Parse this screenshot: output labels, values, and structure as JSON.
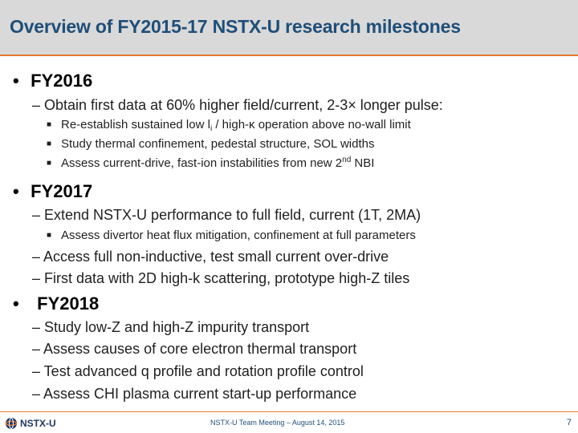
{
  "title": "Overview of FY2015-17 NSTX-U research milestones",
  "fy2016": {
    "heading": "FY2016",
    "sub": "– Obtain first data at 60% higher field/current, 2-3× longer pulse:",
    "items": [
      {
        "pre": "Re-establish sustained low l",
        "subscript": "i",
        "post": " / high-κ operation above no-wall limit"
      },
      {
        "text": "Study thermal confinement, pedestal structure, SOL widths"
      },
      {
        "pre": "Assess current-drive, fast-ion instabilities from new 2",
        "sup": "nd",
        "post": " NBI"
      }
    ]
  },
  "fy2017": {
    "heading": "FY2017",
    "sub1": "– Extend NSTX-U performance to full field, current (1T, 2MA)",
    "item1": "Assess divertor heat flux mitigation, confinement at full parameters",
    "sub2": "– Access full non-inductive, test small current over-drive",
    "sub3": "– First data with 2D high-k scattering, prototype high-Z tiles"
  },
  "fy2018": {
    "heading": "FY2018",
    "subs": [
      "– Study low-Z and high-Z impurity transport",
      "– Assess causes of core electron thermal transport",
      "– Test advanced q profile and rotation profile control",
      "– Assess CHI plasma current start-up performance"
    ]
  },
  "footer": {
    "logo": "NSTX-U",
    "center": "NSTX-U Team Meeting – August 14, 2015",
    "page": "7"
  },
  "colors": {
    "title": "#1f4e79",
    "accent": "#e6782f",
    "title_bg": "#d9d9d9"
  }
}
